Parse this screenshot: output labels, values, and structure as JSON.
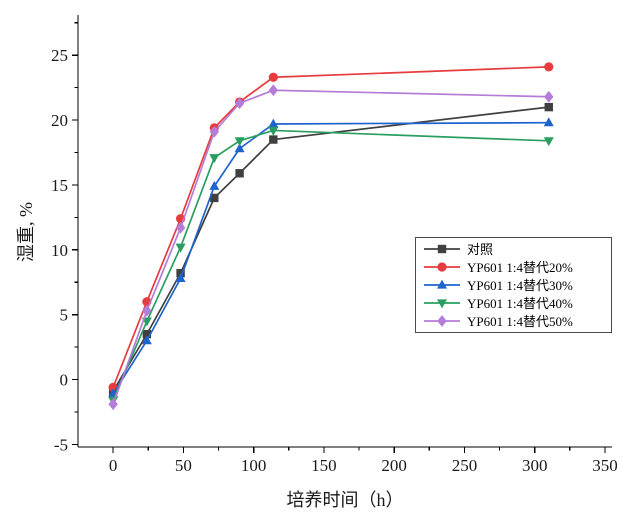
{
  "chart_data": {
    "type": "line",
    "x": [
      0,
      24,
      48,
      72,
      90,
      114,
      310
    ],
    "series": [
      {
        "name": "对照",
        "color": "#404040",
        "marker": "square",
        "values": [
          -0.9,
          3.5,
          8.2,
          14.0,
          15.9,
          18.5,
          21.0
        ]
      },
      {
        "name": "YP601 1:4替代20%",
        "color": "#e73b3e",
        "marker": "circle",
        "values": [
          -0.6,
          6.0,
          12.4,
          19.4,
          21.4,
          23.3,
          24.1
        ]
      },
      {
        "name": "YP601 1:4替代30%",
        "color": "#1f64cd",
        "marker": "triangle-up",
        "values": [
          -1.1,
          3.0,
          7.8,
          14.9,
          17.8,
          19.7,
          19.8
        ]
      },
      {
        "name": "YP601 1:4替代40%",
        "color": "#2a9e60",
        "marker": "triangle-down",
        "values": [
          -1.6,
          4.5,
          10.2,
          17.1,
          18.4,
          19.2,
          18.4
        ]
      },
      {
        "name": "YP601 1:4替代50%",
        "color": "#b57cd8",
        "marker": "diamond",
        "values": [
          -1.9,
          5.3,
          11.7,
          19.1,
          21.3,
          22.3,
          21.8
        ]
      }
    ],
    "xlabel": "培养时间（h）",
    "ylabel": "湿重, %",
    "xlim": [
      -25,
      355
    ],
    "ylim": [
      -5.2,
      28.1
    ],
    "x_ticks": [
      0,
      50,
      100,
      150,
      200,
      250,
      300,
      350
    ],
    "y_ticks": [
      -5,
      0,
      5,
      10,
      15,
      20,
      25
    ],
    "x_minor_step": 25,
    "y_minor_step": 2.5,
    "grid": false,
    "legend_position": "right-center",
    "axis_color": "#000000",
    "tick_label_color": "#1a1a1a"
  }
}
